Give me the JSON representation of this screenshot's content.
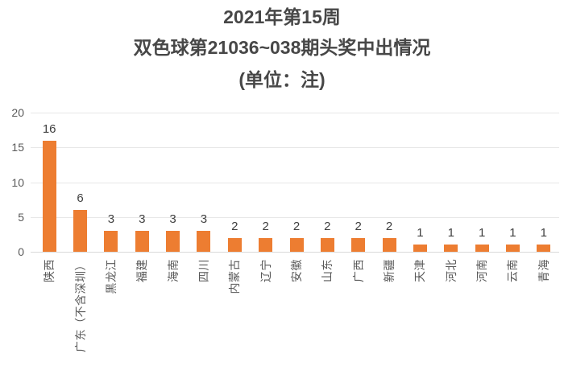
{
  "title": {
    "line1": "2021年第15周",
    "line2": "双色球第21036~038期头奖中出情况",
    "line3": "(单位：注)"
  },
  "chart_data": {
    "type": "bar",
    "title": "2021年第15周 双色球第21036~038期头奖中出情况",
    "unit_label": "(单位：注)",
    "categories": [
      "陕西",
      "广东（不含深圳）",
      "黑龙江",
      "福建",
      "海南",
      "四川",
      "内蒙古",
      "辽宁",
      "安徽",
      "山东",
      "广西",
      "新疆",
      "天津",
      "河北",
      "河南",
      "云南",
      "青海"
    ],
    "values": [
      16,
      6,
      3,
      3,
      3,
      3,
      2,
      2,
      2,
      2,
      2,
      2,
      1,
      1,
      1,
      1,
      1
    ],
    "xlabel": "",
    "ylabel": "",
    "ylim": [
      0,
      20
    ],
    "yticks": [
      0,
      5,
      10,
      15,
      20
    ],
    "grid": true,
    "legend": false,
    "data_labels": true,
    "bar_color": "#ED7D31",
    "axis_label_color": "#595959",
    "value_label_color": "#404040",
    "title_color": "#474747",
    "gridline_color": "#E7E7E7"
  }
}
